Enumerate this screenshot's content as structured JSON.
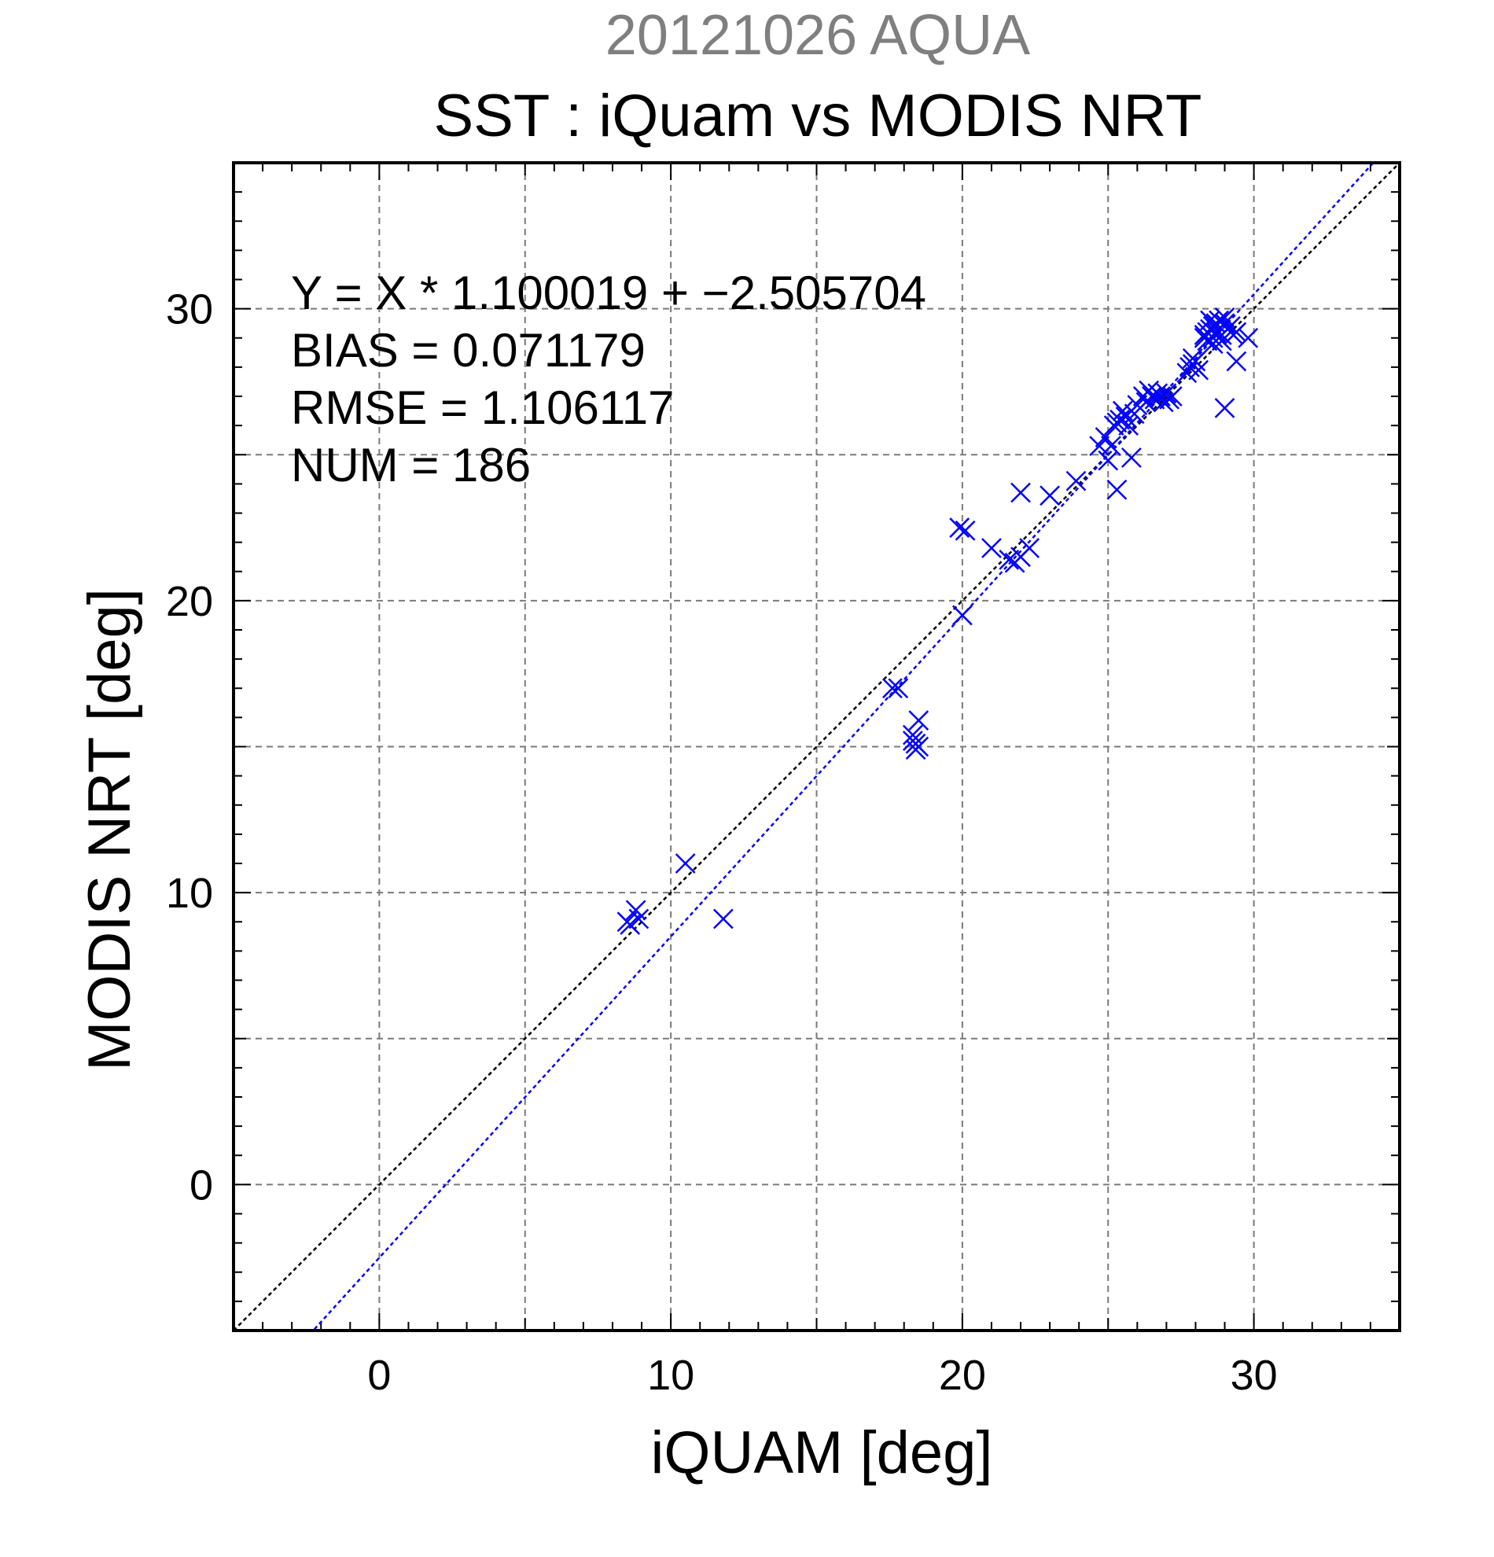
{
  "chart_data": {
    "type": "scatter",
    "title_top": "20121026 AQUA",
    "title": "SST : iQuam vs MODIS NRT",
    "xlabel": "iQUAM [deg]",
    "ylabel": "MODIS NRT [deg]",
    "xlim": [
      -5,
      35
    ],
    "ylim": [
      -5,
      35
    ],
    "xticks": [
      0,
      10,
      20,
      30
    ],
    "yticks": [
      0,
      10,
      20,
      30
    ],
    "grid": true,
    "stats": {
      "fit": "Y = X * 1.100019 + −2.505704",
      "bias": "BIAS = 0.071179",
      "rmse": "RMSE = 1.106117",
      "num": "NUM = 186"
    },
    "lines": [
      {
        "kind": "identity",
        "color": "#000000",
        "slope": 1,
        "intercept": 0
      },
      {
        "kind": "fit",
        "color": "#0000ff",
        "slope": 1.100019,
        "intercept": -2.505704
      }
    ],
    "marker": {
      "shape": "x",
      "color": "#0000ff"
    },
    "points": [
      [
        8.5,
        9.0
      ],
      [
        8.8,
        9.4
      ],
      [
        8.9,
        9.1
      ],
      [
        8.6,
        8.9
      ],
      [
        10.5,
        11.0
      ],
      [
        11.8,
        9.1
      ],
      [
        17.6,
        17.0
      ],
      [
        17.8,
        17.0
      ],
      [
        18.3,
        15.2
      ],
      [
        18.4,
        14.9
      ],
      [
        18.5,
        15.0
      ],
      [
        18.3,
        15.4
      ],
      [
        18.5,
        15.9
      ],
      [
        18.4,
        15.1
      ],
      [
        20.0,
        19.5
      ],
      [
        19.9,
        22.5
      ],
      [
        20.1,
        22.4
      ],
      [
        21.0,
        21.8
      ],
      [
        21.6,
        21.4
      ],
      [
        21.8,
        21.3
      ],
      [
        22.0,
        21.5
      ],
      [
        22.3,
        21.8
      ],
      [
        22.0,
        23.7
      ],
      [
        23.0,
        23.6
      ],
      [
        23.9,
        24.1
      ],
      [
        24.7,
        25.3
      ],
      [
        25.0,
        24.8
      ],
      [
        25.1,
        25.3
      ],
      [
        25.3,
        23.8
      ],
      [
        24.9,
        25.6
      ],
      [
        25.2,
        26.0
      ],
      [
        25.4,
        26.2
      ],
      [
        25.5,
        26.5
      ],
      [
        25.6,
        26.3
      ],
      [
        25.7,
        26.0
      ],
      [
        25.9,
        26.4
      ],
      [
        26.0,
        26.7
      ],
      [
        25.3,
        26.1
      ],
      [
        25.8,
        24.9
      ],
      [
        26.2,
        27.0
      ],
      [
        26.4,
        27.2
      ],
      [
        26.5,
        27.0
      ],
      [
        26.6,
        26.9
      ],
      [
        26.7,
        27.1
      ],
      [
        26.8,
        27.0
      ],
      [
        26.9,
        26.8
      ],
      [
        27.0,
        27.1
      ],
      [
        27.1,
        26.9
      ],
      [
        27.2,
        27.0
      ],
      [
        26.3,
        26.8
      ],
      [
        27.8,
        28.0
      ],
      [
        27.9,
        28.1
      ],
      [
        28.0,
        28.2
      ],
      [
        28.1,
        27.9
      ],
      [
        27.7,
        27.8
      ],
      [
        27.9,
        28.3
      ],
      [
        28.3,
        29.0
      ],
      [
        28.4,
        29.2
      ],
      [
        28.5,
        29.3
      ],
      [
        28.6,
        29.4
      ],
      [
        28.7,
        29.5
      ],
      [
        28.8,
        29.6
      ],
      [
        28.9,
        29.1
      ],
      [
        29.0,
        29.5
      ],
      [
        29.1,
        29.3
      ],
      [
        29.2,
        29.4
      ],
      [
        28.4,
        28.9
      ],
      [
        28.6,
        28.8
      ],
      [
        28.8,
        29.0
      ],
      [
        29.0,
        29.7
      ],
      [
        28.5,
        29.6
      ],
      [
        28.7,
        29.2
      ],
      [
        29.3,
        29.1
      ],
      [
        29.4,
        29.2
      ],
      [
        29.8,
        29.0
      ],
      [
        29.4,
        28.2
      ],
      [
        29.0,
        26.6
      ],
      [
        28.9,
        28.9
      ],
      [
        28.3,
        29.1
      ],
      [
        28.6,
        29.0
      ]
    ]
  }
}
